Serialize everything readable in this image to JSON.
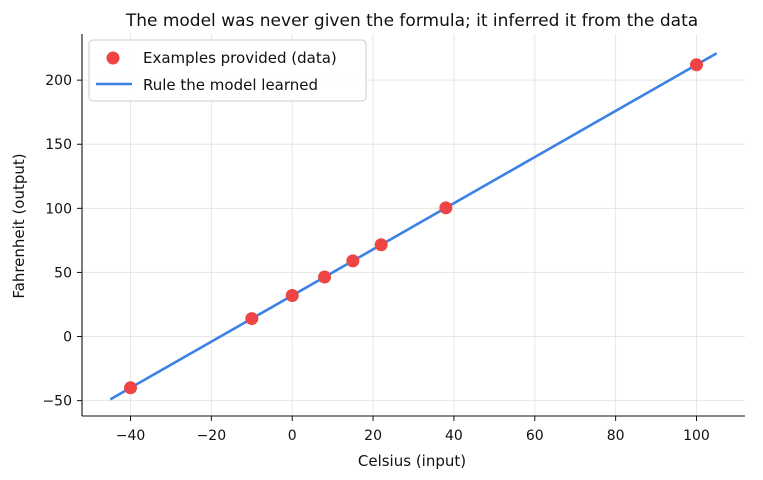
{
  "chart_data": {
    "type": "scatter",
    "title": "The model was never given the formula; it inferred it from the data",
    "xlabel": "Celsius (input)",
    "ylabel": "Fahrenheit (output)",
    "xlim": [
      -52,
      112
    ],
    "ylim": [
      -62,
      236
    ],
    "x_ticks": [
      -40,
      -20,
      0,
      20,
      40,
      60,
      80,
      100
    ],
    "y_ticks": [
      -50,
      0,
      50,
      100,
      150,
      200
    ],
    "grid": true,
    "legend_position": "top-left",
    "series": [
      {
        "name": "Examples provided (data)",
        "kind": "scatter",
        "color": "#ef4444",
        "x": [
          -40,
          -10,
          0,
          8,
          15,
          22,
          38,
          100
        ],
        "y": [
          -40,
          14,
          32,
          46.4,
          59,
          71.6,
          100.4,
          212
        ]
      },
      {
        "name": "Rule the model learned",
        "kind": "line",
        "color": "#3b82e6",
        "x": [
          -45,
          105
        ],
        "y": [
          -49,
          221
        ]
      }
    ]
  }
}
